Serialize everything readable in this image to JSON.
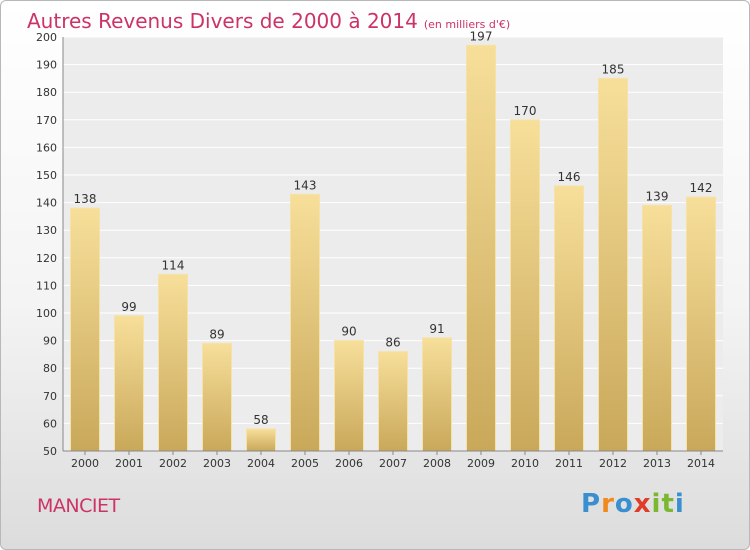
{
  "title": "Autres Revenus Divers de 2000 à 2014",
  "unit": "(en milliers d'€)",
  "place": "MANCIET",
  "logo": {
    "letters": [
      "P",
      "r",
      "o",
      "x",
      "i",
      "t",
      "i"
    ],
    "colors": [
      "#3a8fd0",
      "#f08a1c",
      "#3a8fd0",
      "#e03c28",
      "#7ab830",
      "#7ab830",
      "#3a8fd0"
    ]
  },
  "chart_data": {
    "type": "bar",
    "categories": [
      "2000",
      "2001",
      "2002",
      "2003",
      "2004",
      "2005",
      "2006",
      "2007",
      "2008",
      "2009",
      "2010",
      "2011",
      "2012",
      "2013",
      "2014"
    ],
    "values": [
      138,
      99,
      114,
      89,
      58,
      143,
      90,
      86,
      91,
      197,
      170,
      146,
      185,
      139,
      142
    ],
    "title": "Autres Revenus Divers de 2000 à 2014",
    "ylim": [
      50,
      200
    ],
    "yticks": [
      50,
      60,
      70,
      80,
      90,
      100,
      110,
      120,
      130,
      140,
      150,
      160,
      170,
      180,
      190,
      200
    ],
    "grid": true,
    "bar_color": "#e8c66f"
  }
}
